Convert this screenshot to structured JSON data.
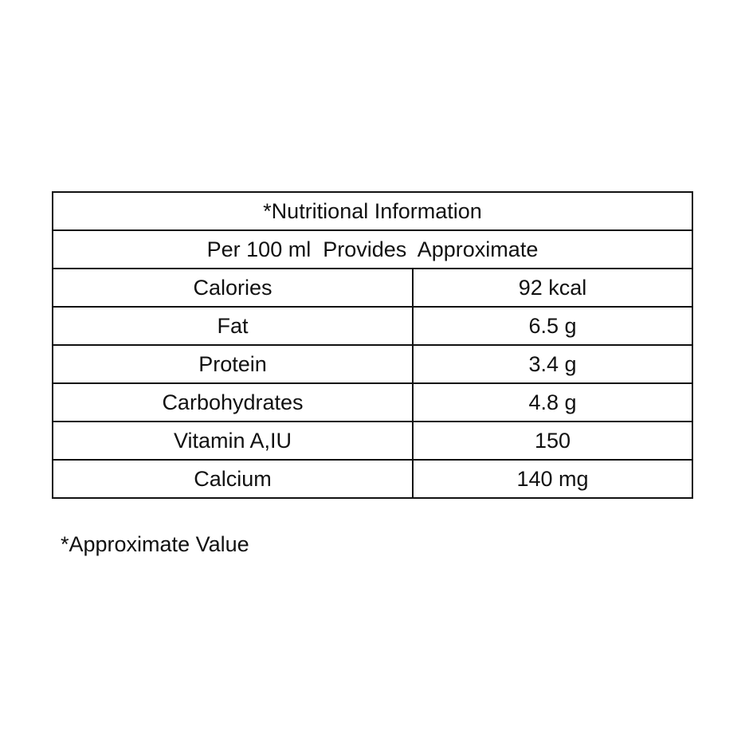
{
  "table": {
    "title": "*Nutritional Information",
    "subtitle": "Per 100 ml  Provides  Approximate",
    "rows": [
      [
        "Calories",
        "92 kcal"
      ],
      [
        "Fat",
        "6.5 g"
      ],
      [
        "Protein",
        "3.4 g"
      ],
      [
        "Carbohydrates",
        "4.8 g"
      ],
      [
        "Vitamin A,IU",
        "150"
      ],
      [
        "Calcium",
        "140 mg"
      ]
    ]
  },
  "footnote": "*Approximate Value"
}
